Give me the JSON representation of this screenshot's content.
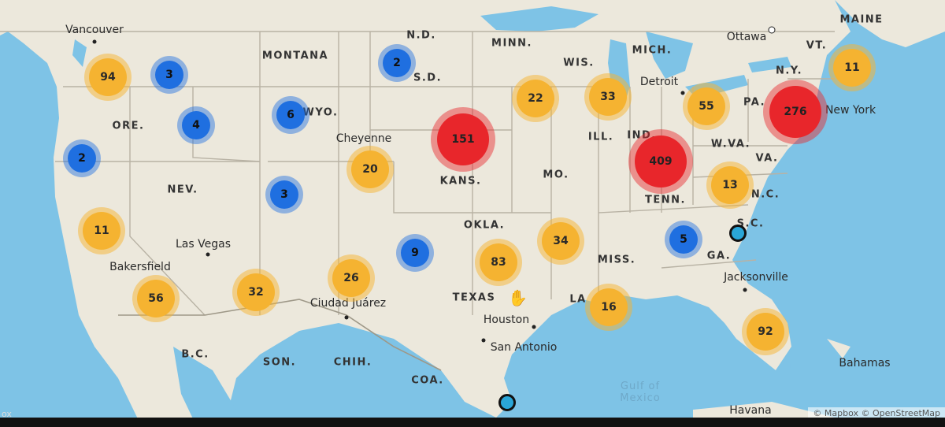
{
  "map": {
    "colors": {
      "land": "#ece8dc",
      "water": "#7ec3e6",
      "border": "#b8b2a4",
      "blue": "#1f6fe0",
      "orange": "#f5b331",
      "red": "#e8262b"
    },
    "states": [
      {
        "id": "nd",
        "label": "N.D."
      },
      {
        "id": "minn",
        "label": "MINN."
      },
      {
        "id": "montana",
        "label": "MONTANA"
      },
      {
        "id": "sd",
        "label": "S.D."
      },
      {
        "id": "wis",
        "label": "WIS."
      },
      {
        "id": "mich",
        "label": "MICH."
      },
      {
        "id": "ore",
        "label": "ORE."
      },
      {
        "id": "wyo",
        "label": "WYO."
      },
      {
        "id": "ny",
        "label": "N.Y."
      },
      {
        "id": "vt",
        "label": "VT."
      },
      {
        "id": "maine",
        "label": "MAINE"
      },
      {
        "id": "pa",
        "label": "PA."
      },
      {
        "id": "ill",
        "label": "ILL."
      },
      {
        "id": "ind",
        "label": "IND."
      },
      {
        "id": "nev",
        "label": "NEV."
      },
      {
        "id": "kans",
        "label": "KANS."
      },
      {
        "id": "mo",
        "label": "MO."
      },
      {
        "id": "wva",
        "label": "W.VA."
      },
      {
        "id": "va",
        "label": "VA."
      },
      {
        "id": "tenn",
        "label": "TENN."
      },
      {
        "id": "nc",
        "label": "N.C."
      },
      {
        "id": "sc",
        "label": "S.C."
      },
      {
        "id": "okla",
        "label": "OKLA."
      },
      {
        "id": "miss",
        "label": "MISS."
      },
      {
        "id": "ga",
        "label": "GA."
      },
      {
        "id": "texas",
        "label": "TEXAS"
      },
      {
        "id": "la",
        "label": "LA"
      },
      {
        "id": "bc",
        "label": "B.C."
      },
      {
        "id": "son",
        "label": "SON."
      },
      {
        "id": "chih",
        "label": "CHIH."
      },
      {
        "id": "coa",
        "label": "COA."
      }
    ],
    "cities": [
      {
        "id": "vancouver",
        "label": "Vancouver"
      },
      {
        "id": "ottawa",
        "label": "Ottawa"
      },
      {
        "id": "detroit",
        "label": "Detroit"
      },
      {
        "id": "newyork",
        "label": "New York"
      },
      {
        "id": "cheyenne",
        "label": "Cheyenne"
      },
      {
        "id": "lasvegas",
        "label": "Las Vegas"
      },
      {
        "id": "bakersfield",
        "label": "Bakersfield"
      },
      {
        "id": "ciudadjuarez",
        "label": "Ciudad Juárez"
      },
      {
        "id": "houston",
        "label": "Houston"
      },
      {
        "id": "sanantonio",
        "label": "San Antonio"
      },
      {
        "id": "jacksonville",
        "label": "Jacksonville"
      },
      {
        "id": "bahamas",
        "label": "Bahamas"
      },
      {
        "id": "havana",
        "label": "Havana"
      }
    ],
    "water_labels": [
      {
        "id": "gulf",
        "label": "Gulf of\nMexico"
      }
    ],
    "clusters": [
      {
        "id": "c1",
        "count": "94",
        "color": "orange"
      },
      {
        "id": "c2",
        "count": "3",
        "color": "blue"
      },
      {
        "id": "c3",
        "count": "4",
        "color": "blue"
      },
      {
        "id": "c4",
        "count": "6",
        "color": "blue"
      },
      {
        "id": "c5",
        "count": "2",
        "color": "blue"
      },
      {
        "id": "c6",
        "count": "2",
        "color": "blue"
      },
      {
        "id": "c7",
        "count": "151",
        "color": "red"
      },
      {
        "id": "c8",
        "count": "22",
        "color": "orange"
      },
      {
        "id": "c9",
        "count": "33",
        "color": "orange"
      },
      {
        "id": "c10",
        "count": "55",
        "color": "orange"
      },
      {
        "id": "c11",
        "count": "276",
        "color": "red"
      },
      {
        "id": "c12",
        "count": "11",
        "color": "orange"
      },
      {
        "id": "c13",
        "count": "20",
        "color": "orange"
      },
      {
        "id": "c14",
        "count": "3",
        "color": "blue"
      },
      {
        "id": "c15",
        "count": "409",
        "color": "red"
      },
      {
        "id": "c16",
        "count": "13",
        "color": "orange"
      },
      {
        "id": "c17",
        "count": "11",
        "color": "orange"
      },
      {
        "id": "c18",
        "count": "9",
        "color": "blue"
      },
      {
        "id": "c19",
        "count": "83",
        "color": "orange"
      },
      {
        "id": "c20",
        "count": "34",
        "color": "orange"
      },
      {
        "id": "c21",
        "count": "5",
        "color": "blue"
      },
      {
        "id": "c22",
        "count": "56",
        "color": "orange"
      },
      {
        "id": "c23",
        "count": "32",
        "color": "orange"
      },
      {
        "id": "c24",
        "count": "26",
        "color": "orange"
      },
      {
        "id": "c25",
        "count": "16",
        "color": "orange"
      },
      {
        "id": "c26",
        "count": "92",
        "color": "orange"
      }
    ],
    "attribution": "© Mapbox © OpenStreetMap",
    "logo": "ox"
  }
}
